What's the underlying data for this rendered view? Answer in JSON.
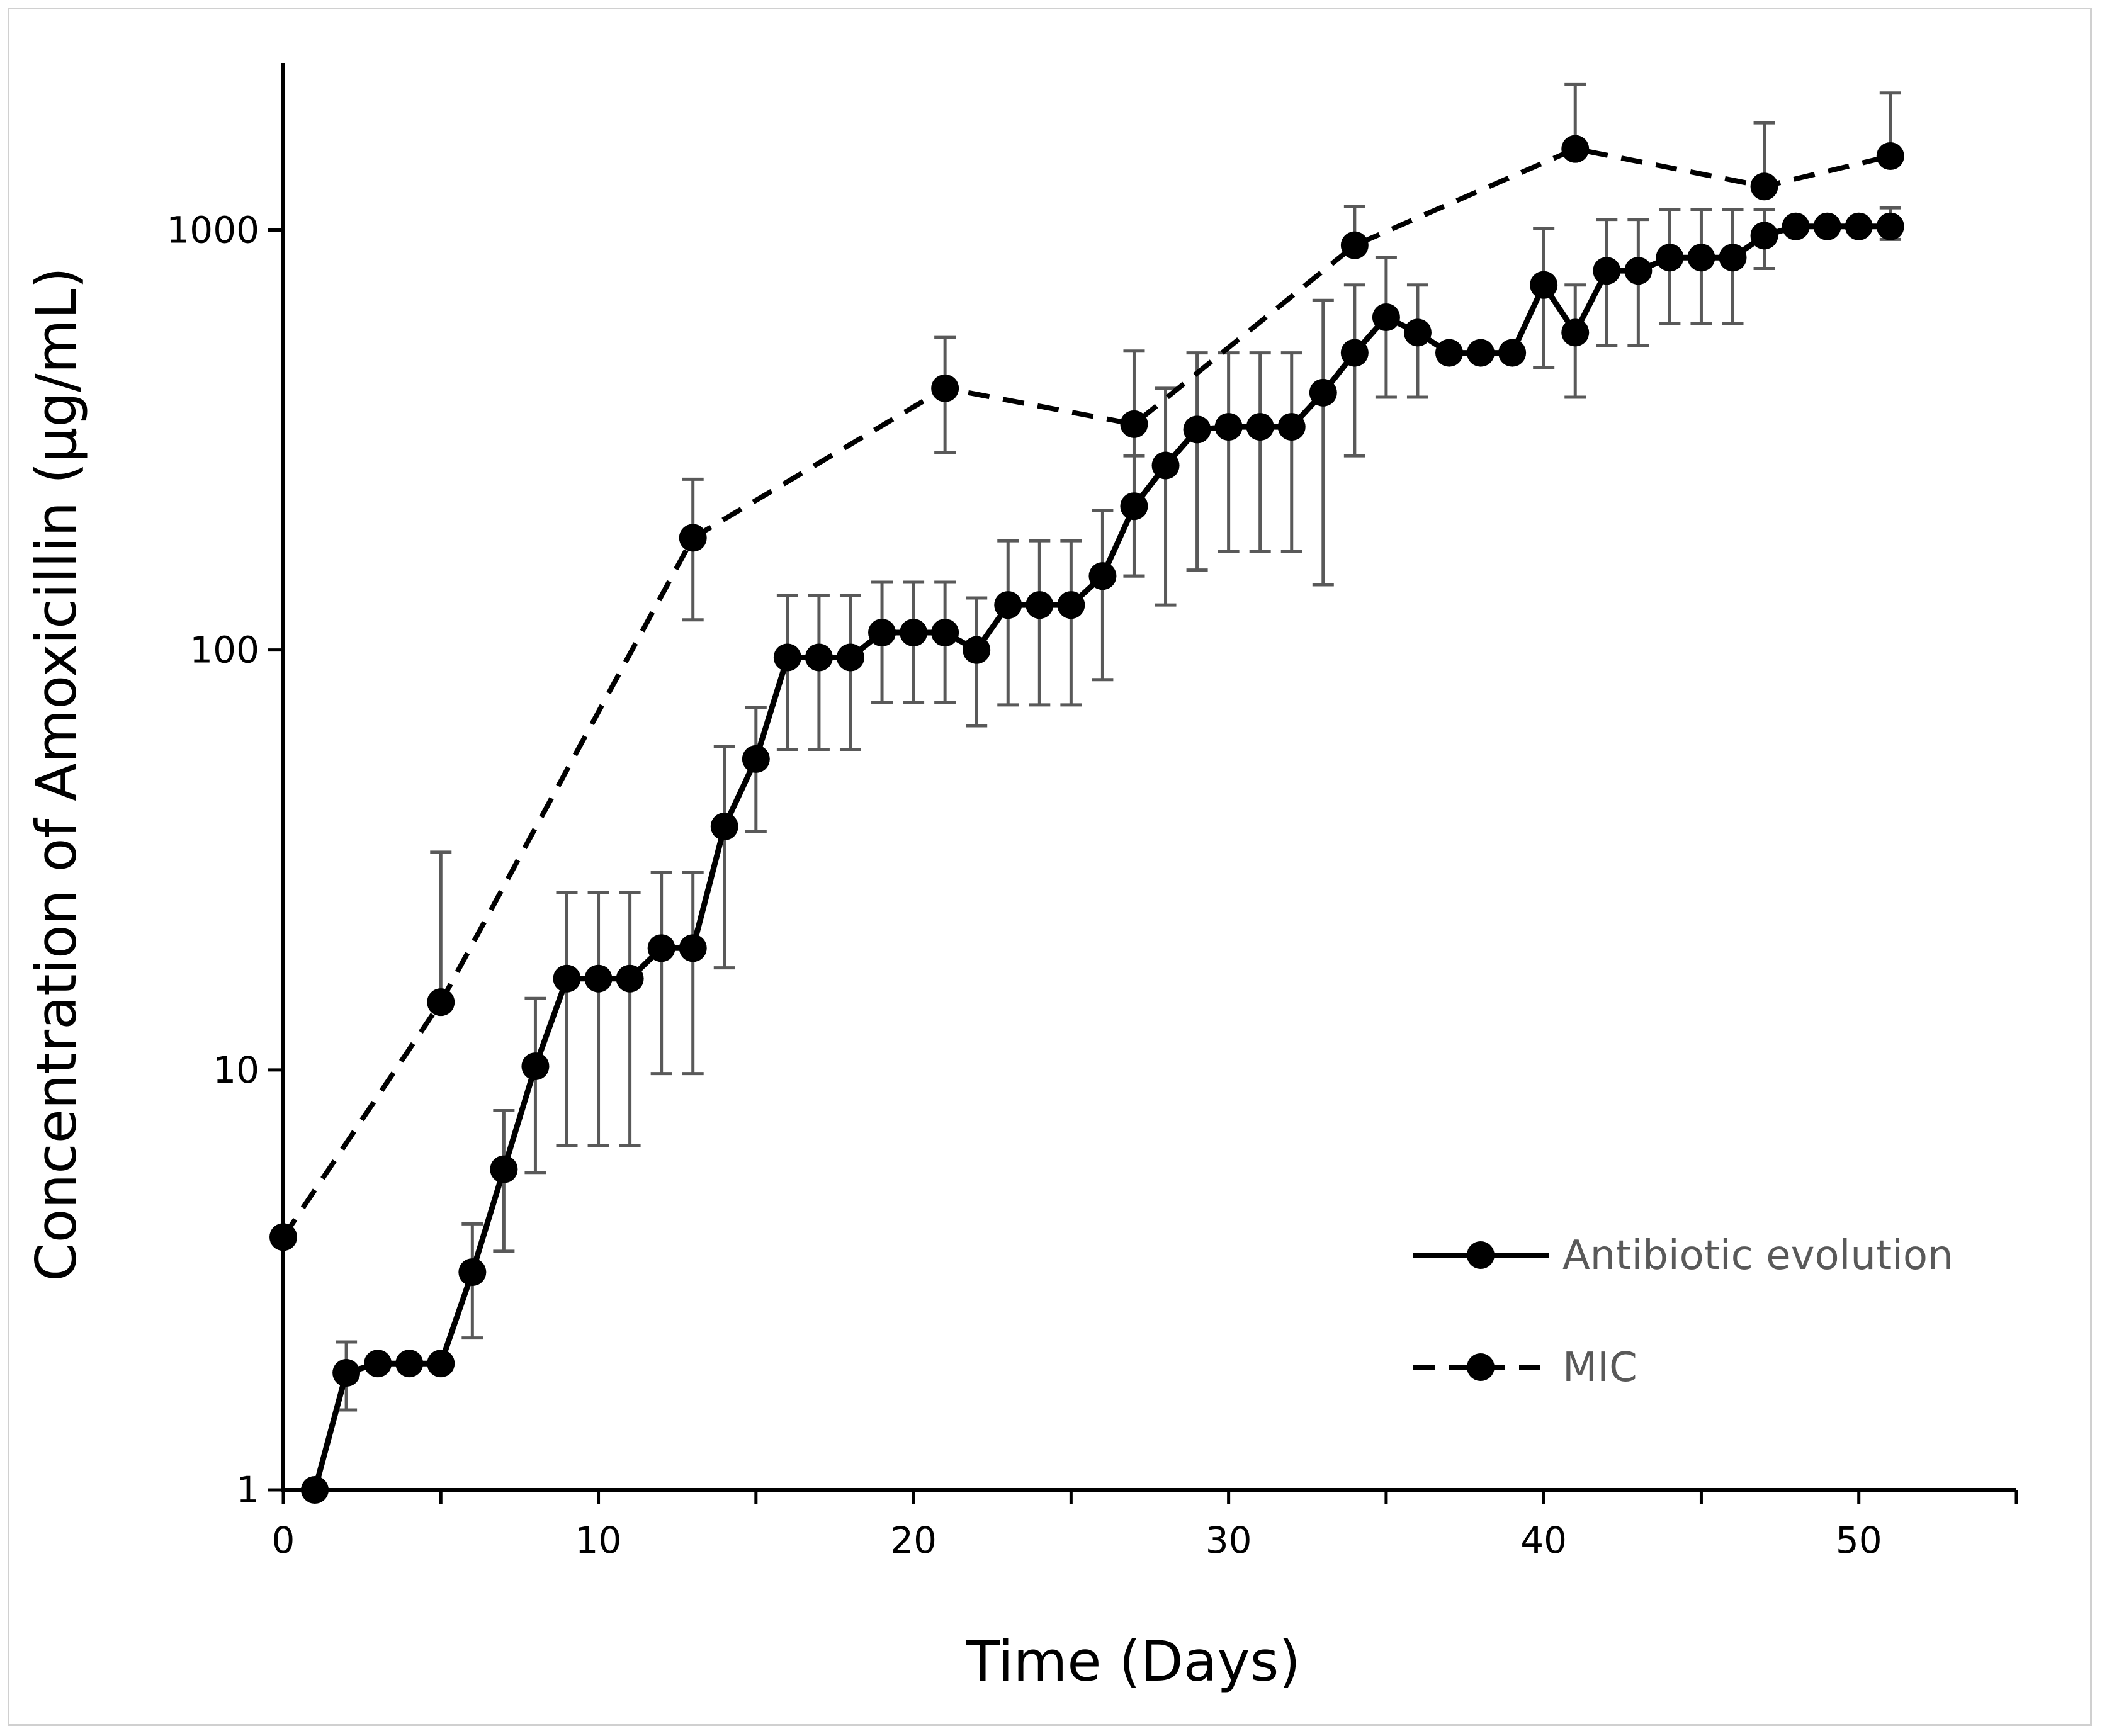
{
  "chart_data": {
    "type": "line",
    "title": "",
    "xlabel": "Time (Days)",
    "ylabel": "Concentration of Amoxicillin (µg/mL)",
    "yscale": "log",
    "xlim": [
      0,
      55
    ],
    "ylim": [
      1,
      2500
    ],
    "xticks": [
      0,
      10,
      20,
      30,
      40,
      50
    ],
    "yticks": [
      1,
      10,
      100,
      1000
    ],
    "grid": false,
    "legend": "bottom-right",
    "colors": {
      "line": "#000000",
      "errorbar": "#595959",
      "axis": "#000000"
    },
    "series": [
      {
        "name": "Antibiotic evolution",
        "style": "solid",
        "x": [
          1,
          2,
          3,
          4,
          5,
          6,
          7,
          8,
          9,
          10,
          11,
          12,
          13,
          14,
          15,
          16,
          17,
          18,
          19,
          20,
          21,
          22,
          23,
          24,
          25,
          26,
          27,
          28,
          29,
          30,
          31,
          32,
          33,
          34,
          35,
          36,
          37,
          38,
          39,
          40,
          41,
          42,
          43,
          44,
          45,
          46,
          47,
          48,
          49,
          50,
          51
        ],
        "y": [
          1,
          1.9,
          2,
          2,
          2,
          3.3,
          5.8,
          10.2,
          16.5,
          16.5,
          16.5,
          19.5,
          19.5,
          38,
          55,
          96,
          96,
          96,
          110,
          110,
          110,
          100,
          128,
          128,
          128,
          150,
          220,
          275,
          335,
          340,
          340,
          340,
          410,
          510,
          620,
          570,
          510,
          510,
          510,
          740,
          570,
          800,
          800,
          860,
          860,
          860,
          970,
          1020,
          1020,
          1020,
          1020
        ],
        "err_low": [
          null,
          1.55,
          null,
          null,
          null,
          2.3,
          3.7,
          5.7,
          6.6,
          6.6,
          6.6,
          9.8,
          9.8,
          17.5,
          37,
          58,
          58,
          58,
          75,
          75,
          75,
          66,
          74,
          74,
          74,
          85,
          150,
          128,
          155,
          172,
          172,
          172,
          143,
          290,
          400,
          400,
          null,
          null,
          null,
          470,
          400,
          530,
          530,
          600,
          600,
          600,
          810,
          null,
          null,
          null,
          950
        ],
        "err_high": [
          null,
          2.25,
          null,
          null,
          null,
          4.3,
          8,
          14.8,
          26.5,
          26.5,
          26.5,
          29.5,
          29.5,
          59,
          73,
          135,
          135,
          135,
          145,
          145,
          145,
          133,
          182,
          182,
          182,
          215,
          290,
          420,
          510,
          510,
          510,
          510,
          680,
          740,
          860,
          740,
          null,
          null,
          null,
          1010,
          740,
          1060,
          1060,
          1120,
          1120,
          1120,
          1120,
          null,
          null,
          null,
          1130
        ]
      },
      {
        "name": "MIC",
        "style": "dashed",
        "x": [
          0,
          5,
          13,
          21,
          27,
          34,
          41,
          47,
          51
        ],
        "y": [
          4,
          14.5,
          185,
          420,
          345,
          920,
          1560,
          1270,
          1500
        ],
        "err_low": [
          null,
          null,
          118,
          295,
          150,
          null,
          null,
          null,
          null
        ],
        "err_high": [
          null,
          33,
          255,
          555,
          515,
          1140,
          2220,
          1800,
          2120
        ]
      }
    ]
  }
}
